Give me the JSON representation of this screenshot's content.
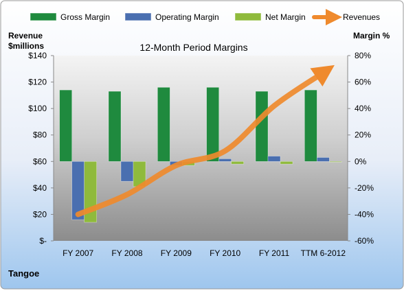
{
  "chart_data": {
    "type": "bar",
    "title": "12-Month Period Margins",
    "company": "Tangoe",
    "left_axis": {
      "label_line1": "Revenue",
      "label_line2": "$millions",
      "range": [
        0,
        140
      ],
      "ticks": [
        0,
        20,
        40,
        60,
        80,
        100,
        120,
        140
      ],
      "tick_labels": [
        "$-",
        "$20",
        "$40",
        "$60",
        "$80",
        "$100",
        "$120",
        "$140"
      ]
    },
    "right_axis": {
      "label": "Margin %",
      "range": [
        -60,
        80
      ],
      "ticks": [
        -60,
        -40,
        -20,
        0,
        20,
        40,
        60,
        80
      ],
      "tick_labels": [
        "-60%",
        "-40%",
        "-20%",
        "0%",
        "20%",
        "40%",
        "60%",
        "80%"
      ]
    },
    "categories": [
      "FY 2007",
      "FY 2008",
      "FY 2009",
      "FY 2010",
      "FY 2011",
      "TTM 6-2012"
    ],
    "series": [
      {
        "name": "Gross Margin",
        "kind": "bar",
        "axis": "right",
        "color": "#1f8a3e",
        "values": [
          54,
          53,
          56,
          56,
          53,
          54
        ]
      },
      {
        "name": "Operating Margin",
        "kind": "bar",
        "axis": "right",
        "color": "#4a6fb0",
        "values": [
          -44,
          -15,
          -3,
          2,
          4,
          3
        ]
      },
      {
        "name": "Net Margin",
        "kind": "bar",
        "axis": "right",
        "color": "#8fba3c",
        "values": [
          -46,
          -19,
          -3,
          -2,
          -2,
          0
        ]
      },
      {
        "name": "Revenues",
        "kind": "line",
        "axis": "left",
        "color": "#ef8a2d",
        "values": [
          20,
          35,
          57,
          68,
          102,
          127
        ]
      }
    ],
    "legend_position": "top",
    "grid": false
  }
}
